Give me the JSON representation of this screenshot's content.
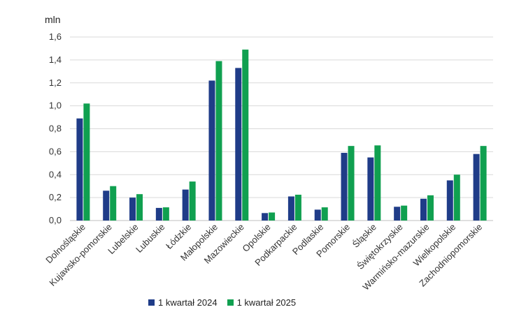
{
  "chart_data": {
    "type": "bar",
    "ylabel": "mln",
    "ylim": [
      0,
      1.6
    ],
    "yticks": [
      "0,0",
      "0,2",
      "0,4",
      "0,6",
      "0,8",
      "1,0",
      "1,2",
      "1,4",
      "1,6"
    ],
    "ytick_values": [
      0,
      0.2,
      0.4,
      0.6,
      0.8,
      1.0,
      1.2,
      1.4,
      1.6
    ],
    "grid": true,
    "legend_position": "bottom",
    "categories": [
      "Dolnośląskie",
      "Kujawsko-pomorskie",
      "Lubelskie",
      "Lubuskie",
      "Łódzkie",
      "Małopolskie",
      "Mazowieckie",
      "Opolskie",
      "Podkarpackie",
      "Podlaskie",
      "Pomorskie",
      "Śląskie",
      "Świętokrzyskie",
      "Warmińsko-mazurskie",
      "Wielkopolskie",
      "Zachodniopomorskie"
    ],
    "series": [
      {
        "name": "1 kwartał 2024",
        "color": "#1f3c88",
        "values": [
          0.89,
          0.26,
          0.2,
          0.11,
          0.27,
          1.22,
          1.33,
          0.065,
          0.21,
          0.095,
          0.59,
          0.55,
          0.12,
          0.19,
          0.35,
          0.58
        ]
      },
      {
        "name": "1 kwartał 2025",
        "color": "#10a050",
        "values": [
          1.02,
          0.3,
          0.23,
          0.115,
          0.34,
          1.39,
          1.49,
          0.07,
          0.225,
          0.115,
          0.65,
          0.655,
          0.13,
          0.22,
          0.4,
          0.65
        ]
      }
    ]
  }
}
